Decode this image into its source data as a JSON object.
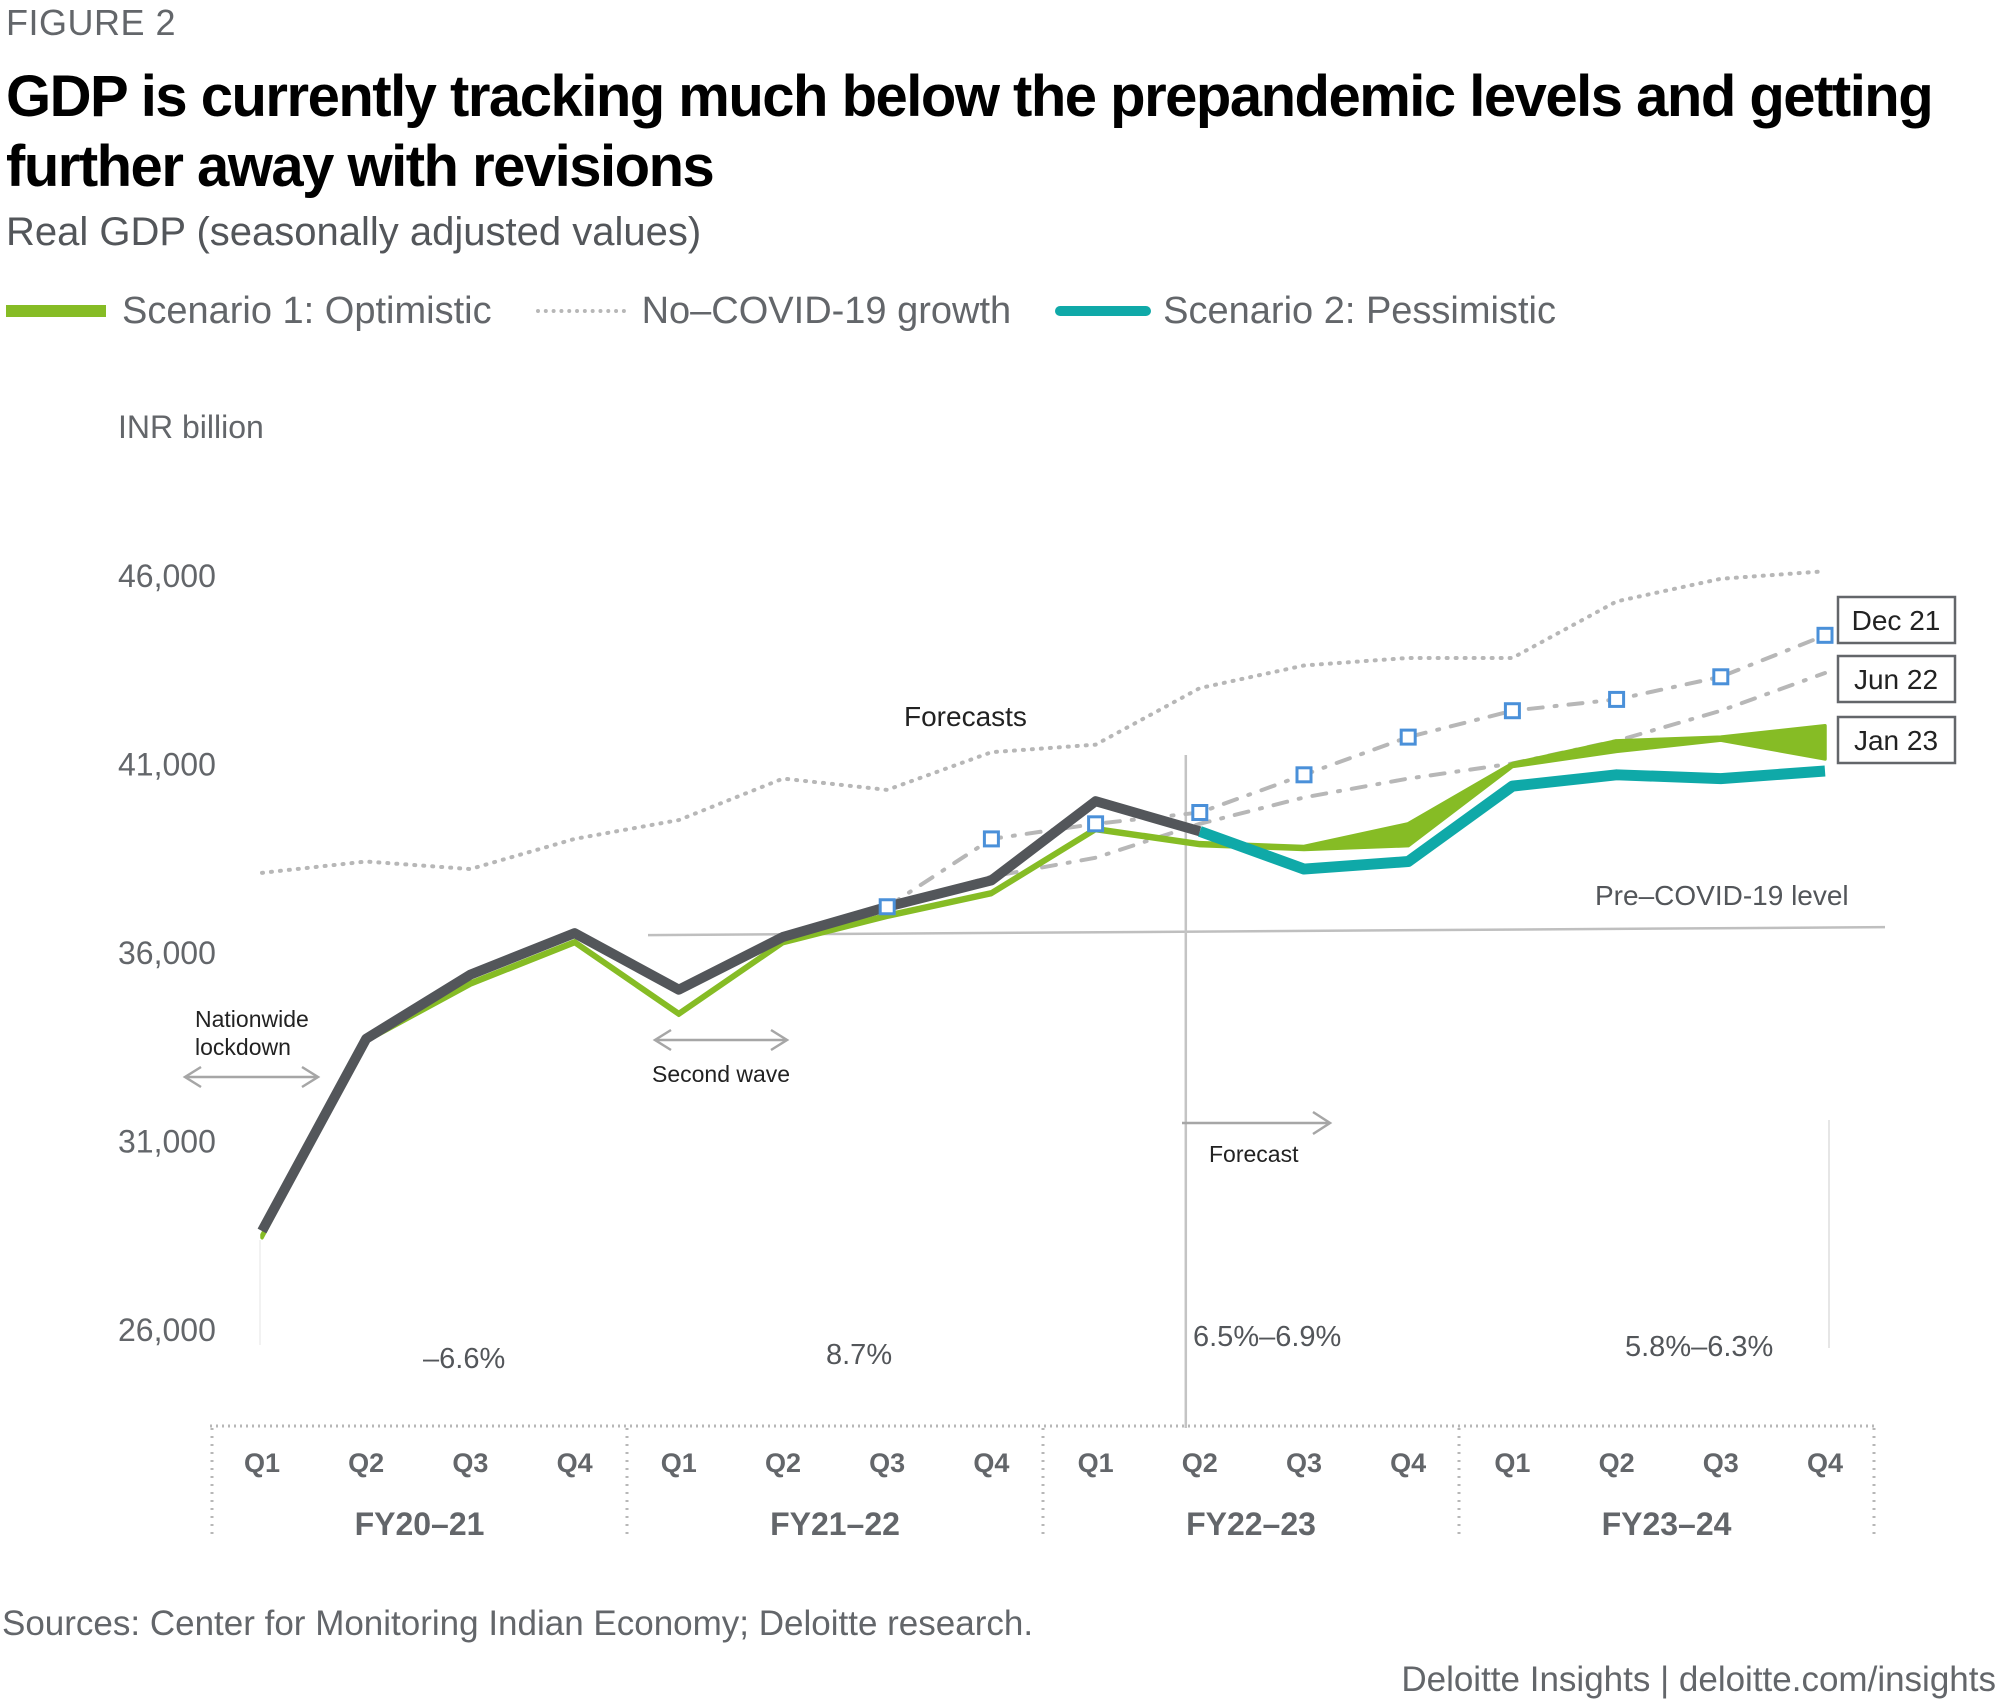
{
  "figure_label": "FIGURE 2",
  "title": "GDP is currently tracking much below the prepandemic levels and getting further away with revisions",
  "subtitle": "Real GDP (seasonally adjusted values)",
  "legend": [
    {
      "label": "Scenario 1: Optimistic",
      "style": "solid-bar",
      "color": "#86bc25"
    },
    {
      "label": "No–COVID-19 growth",
      "style": "dotted",
      "color": "#b7b7b7"
    },
    {
      "label": "Scenario 2: Pessimistic",
      "style": "solid-bar",
      "color": "#0fa9a8"
    }
  ],
  "source": "Sources: Center for Monitoring Indian Economy; Deloitte research.",
  "credit": "Deloitte Insights | deloitte.com/insights",
  "colors": {
    "actual": "#53565a",
    "optimistic": "#86bc25",
    "pessimistic": "#0fa9a8",
    "no_covid": "#b7b7b7",
    "revision": "#b7b7b7",
    "marker": "#4a90d9",
    "reference": "#bfbfbf"
  },
  "chart_data": {
    "type": "line",
    "title": "GDP is currently tracking much below the prepandemic levels and getting further away with revisions",
    "subtitle": "Real GDP (seasonally adjusted values)",
    "ylabel": "INR billion",
    "xlabel": "",
    "ylim": [
      26000,
      46000
    ],
    "yticks": [
      26000,
      31000,
      36000,
      41000,
      46000
    ],
    "ytick_labels": [
      "26,000",
      "31,000",
      "36,000",
      "41,000",
      "46,000"
    ],
    "grid": false,
    "legend_position": "top-left",
    "x": [
      "FY20–21 Q1",
      "FY20–21 Q2",
      "FY20–21 Q3",
      "FY20–21 Q4",
      "FY21–22 Q1",
      "FY21–22 Q2",
      "FY21–22 Q3",
      "FY21–22 Q4",
      "FY22–23 Q1",
      "FY22–23 Q2",
      "FY22–23 Q3",
      "FY22–23 Q4",
      "FY23–24 Q1",
      "FY23–24 Q2",
      "FY23–24 Q3",
      "FY23–24 Q4"
    ],
    "quarter_labels": [
      "Q1",
      "Q2",
      "Q3",
      "Q4",
      "Q1",
      "Q2",
      "Q3",
      "Q4",
      "Q1",
      "Q2",
      "Q3",
      "Q4",
      "Q1",
      "Q2",
      "Q3",
      "Q4"
    ],
    "fiscal_years": [
      "FY20–21",
      "FY21–22",
      "FY22–23",
      "FY23–24"
    ],
    "series": [
      {
        "name": "No–COVID-19 growth",
        "style": "dotted",
        "values": [
          38100,
          38400,
          38200,
          39000,
          39500,
          40600,
          40300,
          41300,
          41500,
          43000,
          43600,
          43800,
          43800,
          45300,
          45900,
          46100
        ]
      },
      {
        "name": "Dec 21",
        "style": "dash-dot-markers",
        "values": [
          null,
          null,
          null,
          null,
          null,
          null,
          37200,
          39000,
          39400,
          39700,
          40700,
          41700,
          42400,
          42700,
          43300,
          44400
        ]
      },
      {
        "name": "Jun 22",
        "style": "dash-dot",
        "values": [
          null,
          null,
          null,
          null,
          null,
          null,
          37200,
          38000,
          38500,
          39400,
          40100,
          40600,
          41000,
          41600,
          42400,
          43400
        ]
      },
      {
        "name": "Scenario 1: Optimistic (upper)",
        "style": "band-upper",
        "values": [
          28500,
          33700,
          35200,
          36300,
          34400,
          36300,
          37000,
          37600,
          39300,
          38900,
          38800,
          39400,
          41000,
          41600,
          41700,
          42000
        ]
      },
      {
        "name": "Scenario 1: Optimistic (lower)",
        "style": "band-lower",
        "values": [
          28500,
          33700,
          35200,
          36300,
          34400,
          36300,
          37000,
          37600,
          39300,
          38900,
          38800,
          38900,
          41000,
          41400,
          41700,
          41200
        ]
      },
      {
        "name": "Scenario 2: Pessimistic",
        "style": "thick",
        "values": [
          null,
          null,
          null,
          null,
          null,
          null,
          null,
          null,
          null,
          39200,
          38200,
          38400,
          40400,
          40700,
          40600,
          40800
        ]
      },
      {
        "name": "Actual (Jan 23)",
        "style": "thick-dark",
        "values": [
          28600,
          33700,
          35400,
          36500,
          35000,
          36400,
          37200,
          37900,
          40000,
          39200,
          null,
          null,
          null,
          null,
          null,
          null
        ]
      }
    ],
    "reference_line": {
      "label": "Pre–COVID-19 level",
      "value": 36500
    },
    "forecast_start": "FY22–23 Q2",
    "revision_labels": [
      "Dec 21",
      "Jun 22",
      "Jan 23"
    ],
    "annotations": [
      {
        "text": "Forecasts"
      },
      {
        "text": "Nationwide lockdown"
      },
      {
        "text": "Second wave"
      },
      {
        "text": "Forecast"
      }
    ],
    "annual_growth": [
      {
        "fy": "FY20–21",
        "label": "–6.6%"
      },
      {
        "fy": "FY21–22",
        "label": "8.7%"
      },
      {
        "fy": "FY22–23",
        "label": "6.5%–6.9%"
      },
      {
        "fy": "FY23–24",
        "label": "5.8%–6.3%"
      }
    ]
  }
}
